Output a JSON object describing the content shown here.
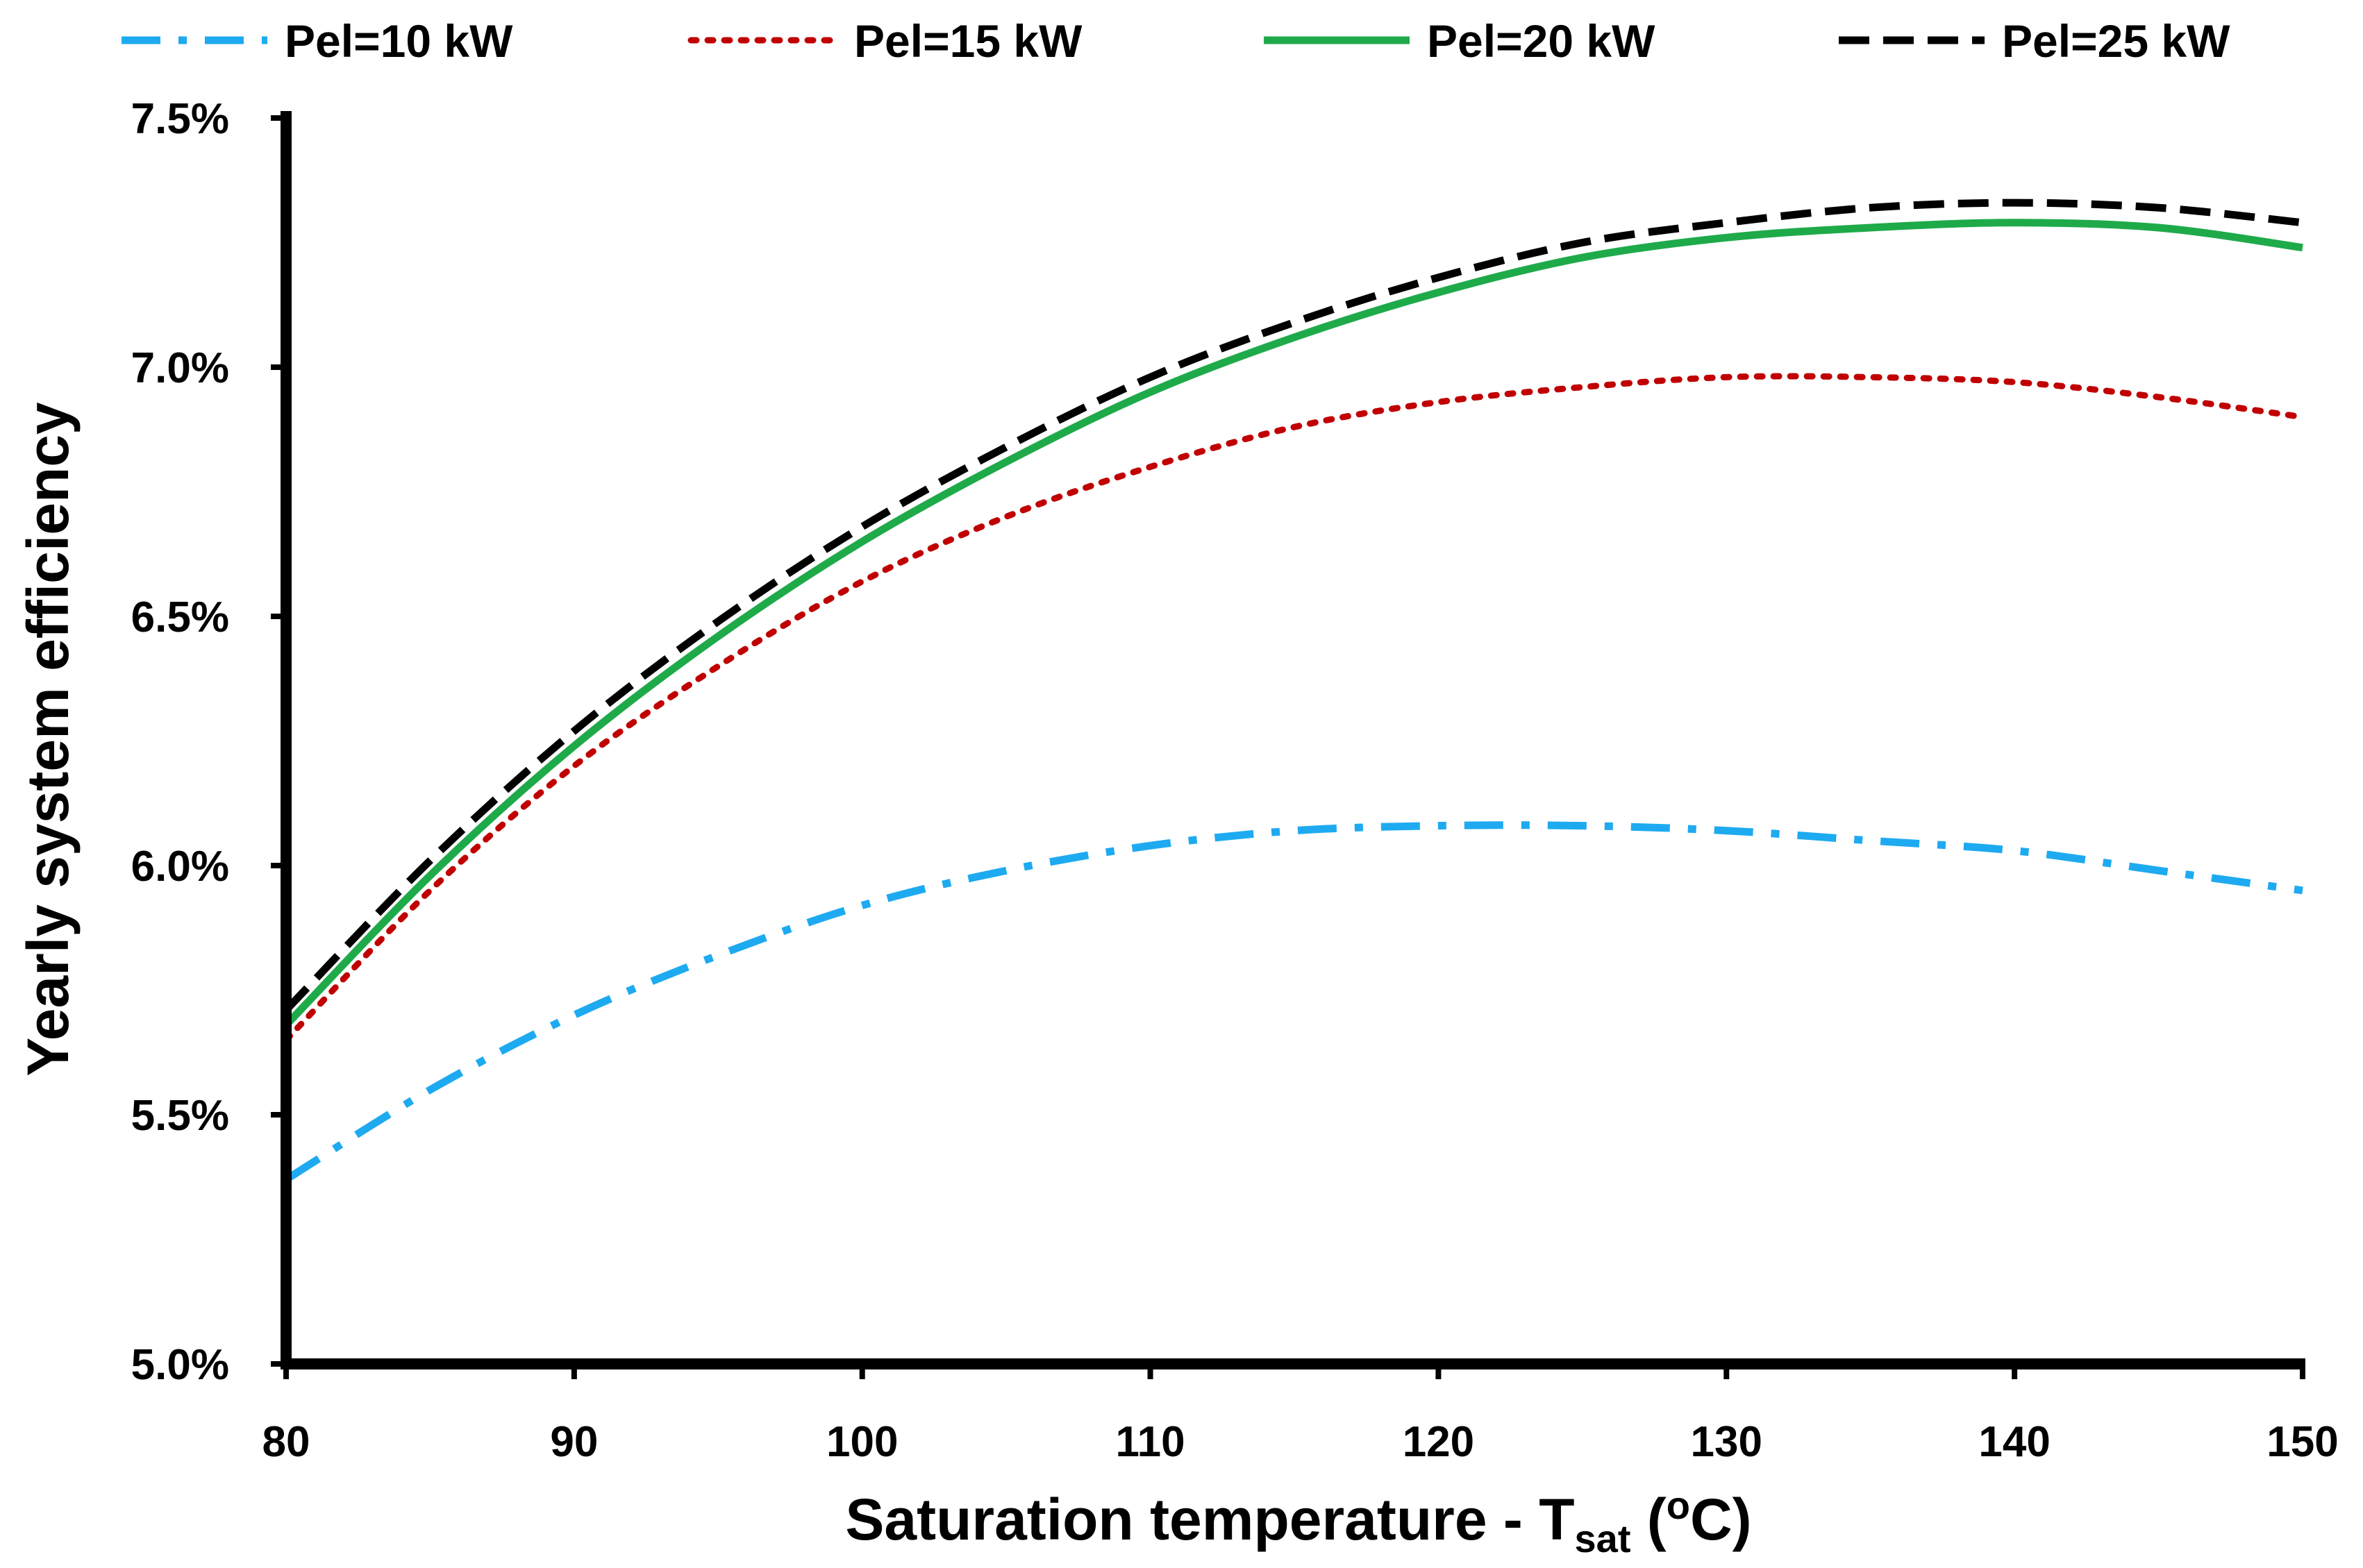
{
  "chart_data": {
    "type": "line",
    "title": "",
    "xlabel": {
      "main": "Saturation temperature - T",
      "sub": "sat",
      "open": " (",
      "sup": "o",
      "close": "C)"
    },
    "ylabel": "Yearly system efficiency",
    "xlim": [
      80,
      150
    ],
    "ylim": [
      5.0,
      7.5
    ],
    "x_ticks": [
      80,
      90,
      100,
      110,
      120,
      130,
      140,
      150
    ],
    "x_tick_labels": [
      "80",
      "90",
      "100",
      "110",
      "120",
      "130",
      "140",
      "150"
    ],
    "y_ticks": [
      5.0,
      5.5,
      6.0,
      6.5,
      7.0,
      7.5
    ],
    "y_tick_labels": [
      "5.0%",
      "5.5%",
      "6.0%",
      "6.5%",
      "7.0%",
      "7.5%"
    ],
    "grid": false,
    "legend_position": "top",
    "x": [
      80,
      85,
      90,
      95,
      100,
      105,
      110,
      115,
      120,
      125,
      130,
      135,
      140,
      145,
      150
    ],
    "series": [
      {
        "name": "Pel=10 kW",
        "color": "#1EAAF0",
        "dash": "dashdot",
        "values": [
          5.37,
          5.55,
          5.7,
          5.82,
          5.92,
          5.99,
          6.04,
          6.07,
          6.08,
          6.08,
          6.07,
          6.05,
          6.03,
          5.99,
          5.95
        ]
      },
      {
        "name": "Pel=15 kW",
        "color": "#C00000",
        "dash": "dotted",
        "values": [
          5.65,
          5.95,
          6.2,
          6.4,
          6.57,
          6.7,
          6.8,
          6.88,
          6.93,
          6.96,
          6.98,
          6.98,
          6.97,
          6.94,
          6.9
        ]
      },
      {
        "name": "Pel=20 kW",
        "color": "#1FAA4A",
        "dash": "solid",
        "values": [
          5.68,
          5.98,
          6.24,
          6.46,
          6.65,
          6.81,
          6.95,
          7.06,
          7.15,
          7.22,
          7.26,
          7.28,
          7.29,
          7.28,
          7.24
        ]
      },
      {
        "name": "Pel=25 kW",
        "color": "#000000",
        "dash": "dashed",
        "values": [
          5.71,
          6.01,
          6.27,
          6.49,
          6.68,
          6.84,
          6.98,
          7.09,
          7.18,
          7.25,
          7.29,
          7.32,
          7.33,
          7.32,
          7.29
        ]
      }
    ]
  }
}
